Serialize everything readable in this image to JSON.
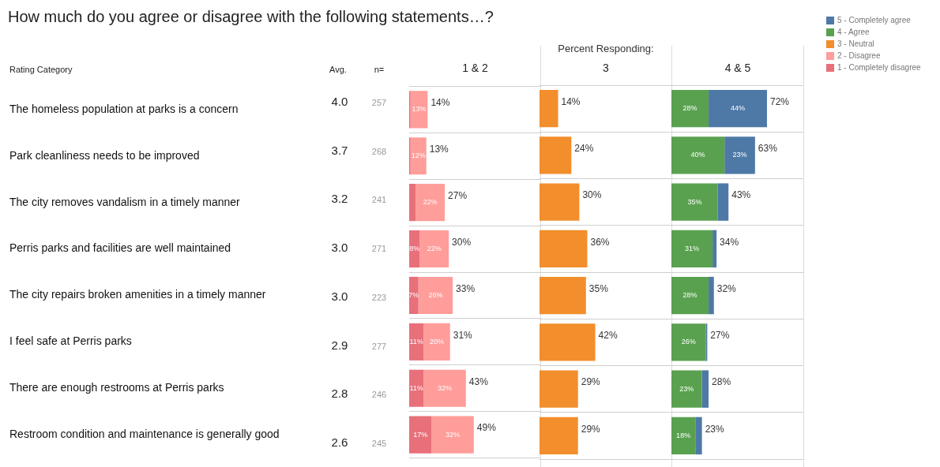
{
  "chart_data": [
    {
      "type": "other",
      "title": "How much do you agree or disagree with the following statements…?",
      "subtitle": "Percent Responding:",
      "annotations": [
        "Avg.",
        "n=",
        "4.0",
        "257",
        "3.7",
        "268",
        "3.2",
        "241",
        "3.0",
        "271",
        "3.0",
        "223",
        "2.9",
        "277",
        "2.8",
        "246",
        "2.6",
        "245"
      ]
    },
    {
      "type": "bar",
      "orientation": "horizontal",
      "stacked": true,
      "title": "1 & 2",
      "ylabel": "Rating Category",
      "categories": [
        "The homeless population at parks is a concern",
        "Park cleanliness needs to be improved",
        "The city removes vandalism in a timely manner",
        "Perris parks and facilities are well maintained",
        "The city repairs broken amenities in a timely manner",
        "I feel safe at Perris parks",
        "There are enough restrooms at Perris parks",
        "Restroom condition and maintenance is generally good"
      ],
      "series": [
        {
          "name": "1 - Completely disagree",
          "color": "#e8707a",
          "values": [
            1,
            1,
            5,
            8,
            7,
            11,
            11,
            17
          ],
          "value_labels": [
            null,
            null,
            null,
            "8%",
            "7%",
            "11%",
            "11%",
            "17%"
          ]
        },
        {
          "name": "2 - Disagree",
          "color": "#ff9d9a",
          "values": [
            13,
            12,
            22,
            22,
            26,
            20,
            32,
            32
          ],
          "value_labels": [
            "13%",
            "12%",
            "22%",
            "22%",
            "26%",
            "20%",
            "32%",
            "32%"
          ]
        }
      ],
      "totals": [
        "14%",
        "13%",
        "27%",
        "30%",
        "33%",
        "31%",
        "43%",
        "49%"
      ],
      "xlim": [
        0,
        100
      ],
      "tick_labels": "y",
      "grid": "y",
      "legend": "right"
    },
    {
      "type": "bar",
      "orientation": "horizontal",
      "title": "3",
      "categories": [
        null,
        null,
        null,
        null,
        null,
        null,
        null,
        null
      ],
      "series": [
        {
          "name": "3 - Neutral",
          "color": "#f28e2b",
          "values": [
            14,
            24,
            30,
            36,
            35,
            42,
            29,
            29
          ],
          "value_labels": [
            "14%",
            "24%",
            "30%",
            "36%",
            "35%",
            "42%",
            "29%",
            "29%"
          ]
        }
      ],
      "xlim": [
        0,
        100
      ],
      "tick_labels": false,
      "grid": "y",
      "legend": "right"
    },
    {
      "type": "bar",
      "orientation": "horizontal",
      "stacked": true,
      "title": "4 & 5",
      "categories": [
        null,
        null,
        null,
        null,
        null,
        null,
        null,
        null
      ],
      "series": [
        {
          "name": "4 - Agree",
          "color": "#59a14f",
          "values": [
            28,
            40,
            35,
            31,
            28,
            26,
            23,
            18
          ],
          "value_labels": [
            "28%",
            "40%",
            "35%",
            "31%",
            "28%",
            "26%",
            "23%",
            "18%"
          ]
        },
        {
          "name": "5 - Completely agree",
          "color": "#4e79a7",
          "values": [
            44,
            23,
            8,
            3,
            4,
            1,
            5,
            5
          ],
          "value_labels": [
            "44%",
            "23%",
            null,
            null,
            null,
            null,
            null,
            null
          ]
        }
      ],
      "totals": [
        "72%",
        "63%",
        "43%",
        "34%",
        "32%",
        "27%",
        "28%",
        "23%"
      ],
      "xlim": [
        0,
        100
      ],
      "tick_labels": false,
      "grid": "y",
      "legend": "right"
    }
  ]
}
